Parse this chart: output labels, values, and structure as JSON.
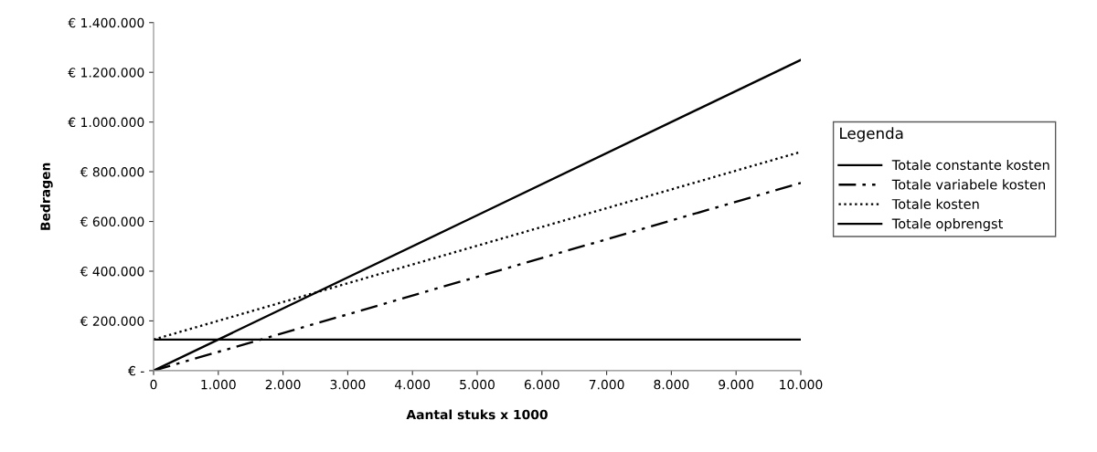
{
  "chart_data": {
    "type": "line",
    "xlabel": "Aantal stuks x 1000",
    "ylabel": "Bedragen",
    "legend_title": "Legenda",
    "legend": "right",
    "grid": false,
    "marker": "none",
    "x": [
      0,
      10000
    ],
    "series": [
      {
        "name": "Totale constante kosten",
        "color": "#000000",
        "line_style": "solid",
        "values": [
          125000,
          125000
        ]
      },
      {
        "name": "Totale variabele kosten",
        "color": "#000000",
        "line_style": "dashdotdot",
        "values": [
          0,
          755000
        ]
      },
      {
        "name": "Totale kosten",
        "color": "#000000",
        "line_style": "dotted",
        "values": [
          125000,
          880000
        ]
      },
      {
        "name": "Totale opbrengst",
        "color": "#000000",
        "line_style": "solid",
        "values": [
          0,
          1250000
        ]
      }
    ],
    "xlim": [
      0,
      10000
    ],
    "xticks": [
      0,
      {
        "value": 1000,
        "label": "1.000"
      },
      {
        "value": 2000,
        "label": "2.000"
      },
      {
        "value": 3000,
        "label": "3.000"
      },
      {
        "value": 4000,
        "label": "4.000"
      },
      {
        "value": 5000,
        "label": "5.000"
      },
      {
        "value": 6000,
        "label": "6.000"
      },
      {
        "value": 7000,
        "label": "7.000"
      },
      {
        "value": 8000,
        "label": "8.000"
      },
      {
        "value": 9000,
        "label": "9.000"
      },
      {
        "value": 10000,
        "label": "10.000"
      }
    ],
    "ylim": [
      0,
      1400000
    ],
    "yticks": [
      {
        "value": 0,
        "label": "€ -"
      },
      {
        "value": 200000,
        "label": "€ 200.000"
      },
      {
        "value": 400000,
        "label": "€ 400.000"
      },
      {
        "value": 600000,
        "label": "€ 600.000"
      },
      {
        "value": 800000,
        "label": "€ 800.000"
      },
      {
        "value": 1000000,
        "label": "€ 1.000.000"
      },
      {
        "value": 1200000,
        "label": "€ 1.200.000"
      },
      {
        "value": 1400000,
        "label": "€ 1.400.000"
      }
    ]
  }
}
